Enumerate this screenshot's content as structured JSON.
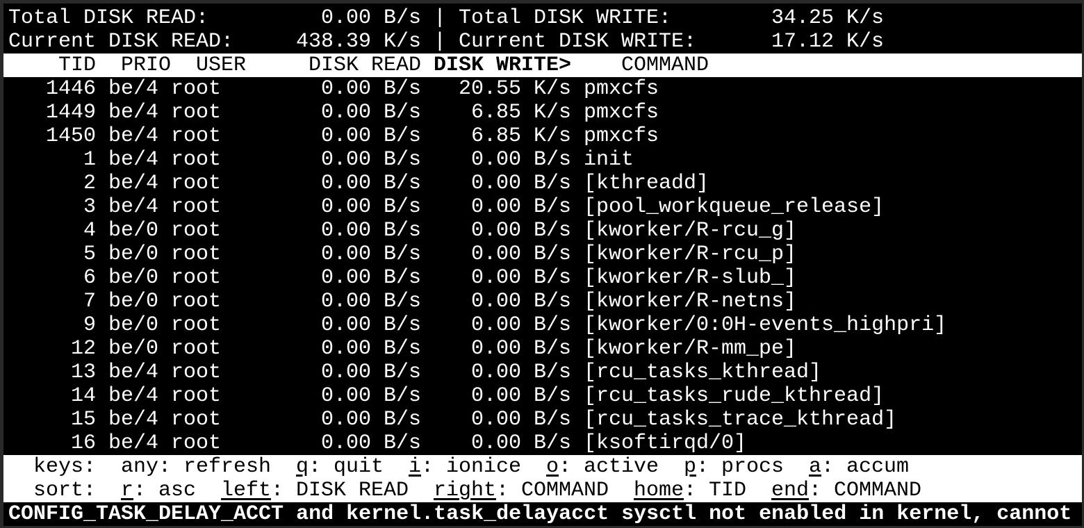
{
  "summary": {
    "total_read_label": "Total DISK READ:",
    "total_read_value": "0.00 B/s",
    "total_write_label": "Total DISK WRITE:",
    "total_write_value": "34.25 K/s",
    "current_read_label": "Current DISK READ:",
    "current_read_value": "438.39 K/s",
    "current_write_label": "Current DISK WRITE:",
    "current_write_value": "17.12 K/s",
    "separator": "|"
  },
  "columns": {
    "tid": "TID",
    "prio": "PRIO",
    "user": "USER",
    "disk_read": "DISK READ",
    "disk_write": "DISK WRITE>",
    "command": "COMMAND",
    "sorted_by": "disk_write"
  },
  "rows": [
    {
      "tid": "1446",
      "prio": "be/4",
      "user": "root",
      "read": "0.00 B/s",
      "write": "20.55 K/s",
      "command": "pmxcfs"
    },
    {
      "tid": "1449",
      "prio": "be/4",
      "user": "root",
      "read": "0.00 B/s",
      "write": "6.85 K/s",
      "command": "pmxcfs"
    },
    {
      "tid": "1450",
      "prio": "be/4",
      "user": "root",
      "read": "0.00 B/s",
      "write": "6.85 K/s",
      "command": "pmxcfs"
    },
    {
      "tid": "1",
      "prio": "be/4",
      "user": "root",
      "read": "0.00 B/s",
      "write": "0.00 B/s",
      "command": "init"
    },
    {
      "tid": "2",
      "prio": "be/4",
      "user": "root",
      "read": "0.00 B/s",
      "write": "0.00 B/s",
      "command": "[kthreadd]"
    },
    {
      "tid": "3",
      "prio": "be/4",
      "user": "root",
      "read": "0.00 B/s",
      "write": "0.00 B/s",
      "command": "[pool_workqueue_release]"
    },
    {
      "tid": "4",
      "prio": "be/0",
      "user": "root",
      "read": "0.00 B/s",
      "write": "0.00 B/s",
      "command": "[kworker/R-rcu_g]"
    },
    {
      "tid": "5",
      "prio": "be/0",
      "user": "root",
      "read": "0.00 B/s",
      "write": "0.00 B/s",
      "command": "[kworker/R-rcu_p]"
    },
    {
      "tid": "6",
      "prio": "be/0",
      "user": "root",
      "read": "0.00 B/s",
      "write": "0.00 B/s",
      "command": "[kworker/R-slub_]"
    },
    {
      "tid": "7",
      "prio": "be/0",
      "user": "root",
      "read": "0.00 B/s",
      "write": "0.00 B/s",
      "command": "[kworker/R-netns]"
    },
    {
      "tid": "9",
      "prio": "be/0",
      "user": "root",
      "read": "0.00 B/s",
      "write": "0.00 B/s",
      "command": "[kworker/0:0H-events_highpri]"
    },
    {
      "tid": "12",
      "prio": "be/0",
      "user": "root",
      "read": "0.00 B/s",
      "write": "0.00 B/s",
      "command": "[kworker/R-mm_pe]"
    },
    {
      "tid": "13",
      "prio": "be/4",
      "user": "root",
      "read": "0.00 B/s",
      "write": "0.00 B/s",
      "command": "[rcu_tasks_kthread]"
    },
    {
      "tid": "14",
      "prio": "be/4",
      "user": "root",
      "read": "0.00 B/s",
      "write": "0.00 B/s",
      "command": "[rcu_tasks_rude_kthread]"
    },
    {
      "tid": "15",
      "prio": "be/4",
      "user": "root",
      "read": "0.00 B/s",
      "write": "0.00 B/s",
      "command": "[rcu_tasks_trace_kthread]"
    },
    {
      "tid": "16",
      "prio": "be/4",
      "user": "root",
      "read": "0.00 B/s",
      "write": "0.00 B/s",
      "command": "[ksoftirqd/0]"
    }
  ],
  "help": {
    "keys_label": "keys:",
    "keys": [
      {
        "key": "any",
        "desc": "refresh",
        "underline": false
      },
      {
        "key": "q",
        "desc": "quit",
        "underline": true
      },
      {
        "key": "i",
        "desc": "ionice",
        "underline": true
      },
      {
        "key": "o",
        "desc": "active",
        "underline": true
      },
      {
        "key": "p",
        "desc": "procs",
        "underline": true
      },
      {
        "key": "a",
        "desc": "accum",
        "underline": true
      }
    ],
    "sort_label": "sort:",
    "sort": [
      {
        "key": "r",
        "desc": "asc",
        "underline": true
      },
      {
        "key": "left",
        "desc": "DISK READ",
        "underline": true
      },
      {
        "key": "right",
        "desc": "COMMAND",
        "underline": true
      },
      {
        "key": "home",
        "desc": "TID",
        "underline": true
      },
      {
        "key": "end",
        "desc": "COMMAND",
        "underline": true
      }
    ]
  },
  "status_message": "CONFIG_TASK_DELAY_ACCT and kernel.task_delayacct sysctl not enabled in kernel, cannot"
}
